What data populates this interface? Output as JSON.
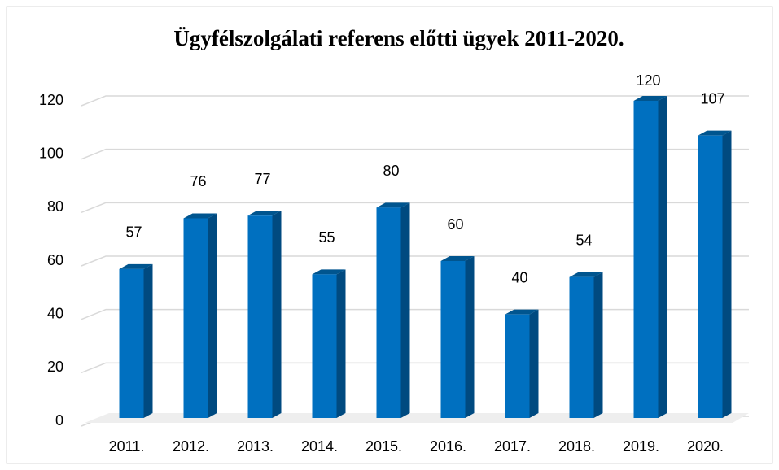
{
  "chart_data": {
    "type": "bar3d",
    "title": "Ügyfélszolgálati referens előtti ügyek 2011-2020.",
    "categories": [
      "2011.",
      "2012.",
      "2013.",
      "2014.",
      "2015.",
      "2016.",
      "2017.",
      "2018.",
      "2019.",
      "2020."
    ],
    "values": [
      57,
      76,
      77,
      55,
      80,
      60,
      40,
      54,
      120,
      107
    ],
    "color": "#0070c0",
    "ylim": [
      0,
      120
    ],
    "yticks": [
      0,
      20,
      40,
      60,
      80,
      100,
      120
    ],
    "grid": true
  }
}
